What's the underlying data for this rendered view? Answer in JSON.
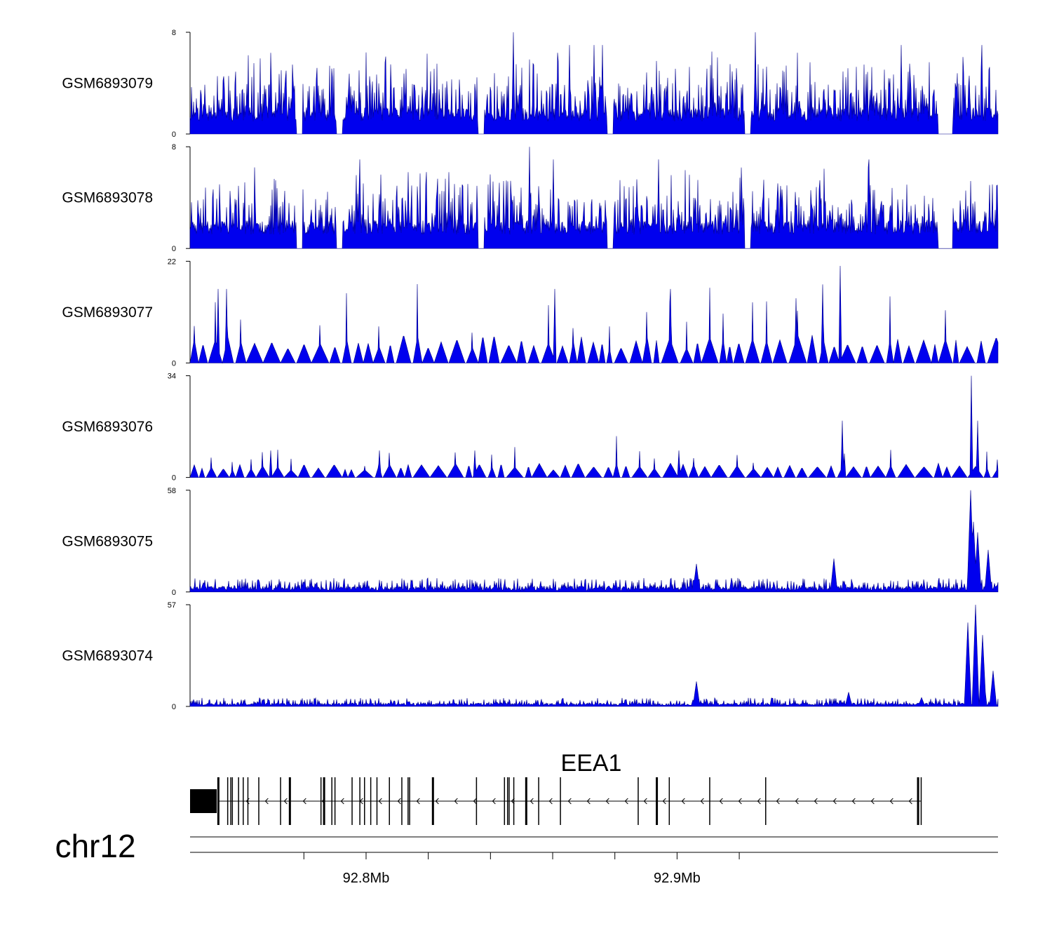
{
  "chart_data": {
    "type": "area",
    "chromosome": "chr12",
    "gene": {
      "name": "EEA1",
      "strand": "-",
      "start_mb": 92.7325,
      "end_mb": 92.9585,
      "exons_mb": [
        92.7325,
        92.7355,
        92.7365,
        92.737,
        92.739,
        92.7405,
        92.742,
        92.7455,
        92.7525,
        92.7655,
        92.769,
        92.77,
        92.7755,
        92.778,
        92.7795,
        92.7815,
        92.7875,
        92.7915,
        92.7935,
        92.794,
        92.8015,
        92.7835,
        92.8155,
        92.8245,
        92.8255,
        92.826,
        92.8275,
        92.8315,
        92.8355,
        92.8425,
        92.8675,
        92.8775,
        92.8905,
        92.9085,
        92.9585
      ],
      "thick_exons_mb": [
        92.7325,
        92.7555,
        92.7665,
        92.8015,
        92.8315,
        92.8735,
        92.9575
      ]
    },
    "x_range_mb": [
      92.7234,
      92.9832
    ],
    "x_ticks": [
      {
        "value": 92.76,
        "label": ""
      },
      {
        "value": 92.78,
        "label": "92.8Mb"
      },
      {
        "value": 92.8,
        "label": ""
      },
      {
        "value": 92.82,
        "label": ""
      },
      {
        "value": 92.84,
        "label": ""
      },
      {
        "value": 92.86,
        "label": ""
      },
      {
        "value": 92.88,
        "label": "92.9Mb"
      },
      {
        "value": 92.9,
        "label": ""
      }
    ],
    "series_color": "#0000ee",
    "tracks": [
      {
        "name": "GSM6893079",
        "ymax": 8,
        "ymin_label": "0",
        "ymax_label": "8",
        "profile": "uniform",
        "base": 1.0,
        "peaks": [
          [
            0.4,
            8
          ],
          [
            0.47,
            7
          ],
          [
            0.51,
            7
          ],
          [
            0.5,
            7
          ],
          [
            0.7,
            8
          ],
          [
            0.88,
            7
          ],
          [
            0.98,
            7
          ]
        ],
        "seed": 11
      },
      {
        "name": "GSM6893078",
        "ymax": 8,
        "ymin_label": "0",
        "ymax_label": "8",
        "profile": "uniform",
        "base": 1.1,
        "peaks": [
          [
            0.21,
            7
          ],
          [
            0.27,
            6
          ],
          [
            0.32,
            6
          ],
          [
            0.42,
            8
          ],
          [
            0.45,
            7
          ],
          [
            0.58,
            7
          ],
          [
            0.84,
            7
          ],
          [
            0.99,
            5
          ]
        ],
        "seed": 23
      },
      {
        "name": "GSM6893077",
        "ymax": 22,
        "ymin_label": "0",
        "ymax_label": "22",
        "profile": "sparse",
        "base": 4.5,
        "peaks": [
          [
            0.035,
            16
          ],
          [
            0.045,
            16
          ],
          [
            0.451,
            16
          ],
          [
            0.595,
            16
          ],
          [
            0.75,
            14
          ],
          [
            0.783,
            17
          ],
          [
            0.805,
            21
          ]
        ],
        "seed": 37
      },
      {
        "name": "GSM6893076",
        "ymax": 34,
        "ymin_label": "0",
        "ymax_label": "34",
        "profile": "sparse",
        "base": 3.5,
        "peaks": [
          [
            0.1,
            9
          ],
          [
            0.234,
            9
          ],
          [
            0.352,
            9
          ],
          [
            0.605,
            9
          ],
          [
            0.81,
            8
          ],
          [
            0.807,
            19
          ],
          [
            0.967,
            34
          ],
          [
            0.975,
            19
          ]
        ],
        "seed": 49
      },
      {
        "name": "GSM6893075",
        "ymax": 58,
        "ymin_label": "0",
        "ymax_label": "58",
        "profile": "dense",
        "base": 2.5,
        "peaks": [
          [
            0.627,
            16
          ],
          [
            0.797,
            19
          ],
          [
            0.966,
            58
          ],
          [
            0.97,
            40
          ],
          [
            0.975,
            34
          ],
          [
            0.988,
            24
          ]
        ],
        "seed": 61
      },
      {
        "name": "GSM6893074",
        "ymax": 57,
        "ymin_label": "0",
        "ymax_label": "57",
        "profile": "dense",
        "base": 1.5,
        "peaks": [
          [
            0.627,
            14
          ],
          [
            0.815,
            8
          ],
          [
            0.905,
            5
          ],
          [
            0.963,
            47
          ],
          [
            0.972,
            57
          ],
          [
            0.981,
            40
          ],
          [
            0.994,
            20
          ]
        ],
        "seed": 73
      }
    ]
  }
}
